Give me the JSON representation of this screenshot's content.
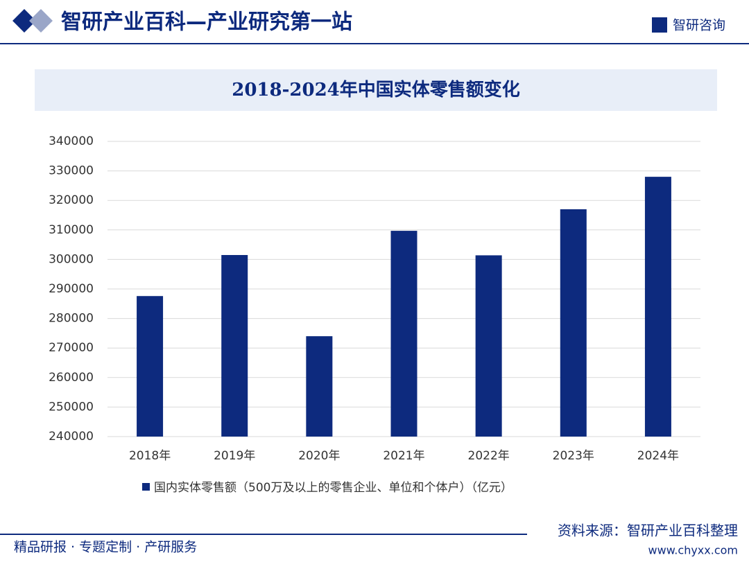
{
  "header": {
    "title": "智研产业百科—产业研究第一站",
    "logo": "智研咨询"
  },
  "chart_data": {
    "type": "bar",
    "title": "2018-2024年中国实体零售额变化",
    "categories": [
      "2018年",
      "2019年",
      "2020年",
      "2021年",
      "2022年",
      "2023年",
      "2024年"
    ],
    "series": [
      {
        "name": "国内实体零售额（500万及以上的零售企业、单位和个体户）（亿元）",
        "color": "#0d2a7e",
        "values": [
          287600,
          301500,
          274000,
          309700,
          301400,
          317000,
          328000
        ]
      }
    ],
    "ylim": [
      240000,
      340000
    ],
    "yticks": [
      240000,
      250000,
      260000,
      270000,
      280000,
      290000,
      300000,
      310000,
      320000,
      330000,
      340000
    ],
    "grid": true
  },
  "footer": {
    "left": "精品研报 · 专题定制 · 产研服务",
    "source": "资料来源：智研产业百科整理",
    "url": "www.chyxx.com"
  }
}
